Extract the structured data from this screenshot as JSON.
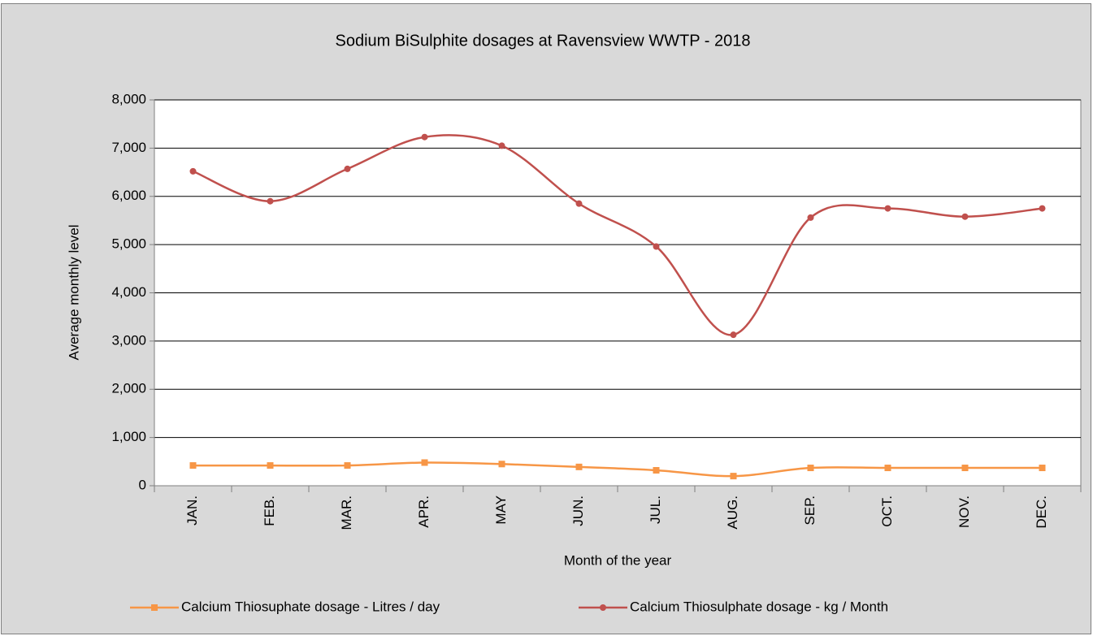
{
  "chart_data": {
    "type": "line",
    "title": "Sodium BiSulphite dosages at Ravensview WWTP - 2018",
    "x_label": "Month of the year",
    "y_label": "Average monthly level",
    "categories": [
      "JAN.",
      "FEB.",
      "MAR.",
      "APR.",
      "MAY",
      "JUN.",
      "JUL.",
      "AUG.",
      "SEP.",
      "OCT.",
      "NOV.",
      "DEC."
    ],
    "series": [
      {
        "name": "Calcium Thiosuphate dosage - Litres / day",
        "color": "#f79646",
        "marker": "square",
        "values": [
          420,
          420,
          420,
          480,
          450,
          390,
          320,
          200,
          370,
          370,
          370,
          370
        ]
      },
      {
        "name": "Calcium Thiosulphate dosage - kg / Month",
        "color": "#c0504d",
        "marker": "circle",
        "values": [
          6520,
          5900,
          6570,
          7230,
          7050,
          5850,
          4960,
          3130,
          5560,
          5750,
          5580,
          5750
        ]
      }
    ],
    "ylim": [
      0,
      8000
    ],
    "yticks": [
      0,
      {
        "value": 1000,
        "label": "1,000"
      },
      {
        "value": 2000,
        "label": "2,000"
      },
      {
        "value": 3000,
        "label": "3,000"
      },
      {
        "value": 4000,
        "label": "4,000"
      },
      {
        "value": 5000,
        "label": "5,000"
      },
      {
        "value": 6000,
        "label": "6,000"
      },
      {
        "value": 7000,
        "label": "7,000"
      },
      {
        "value": 8000,
        "label": "8,000"
      }
    ],
    "grid": true,
    "smooth": true,
    "legend": "bottom"
  }
}
